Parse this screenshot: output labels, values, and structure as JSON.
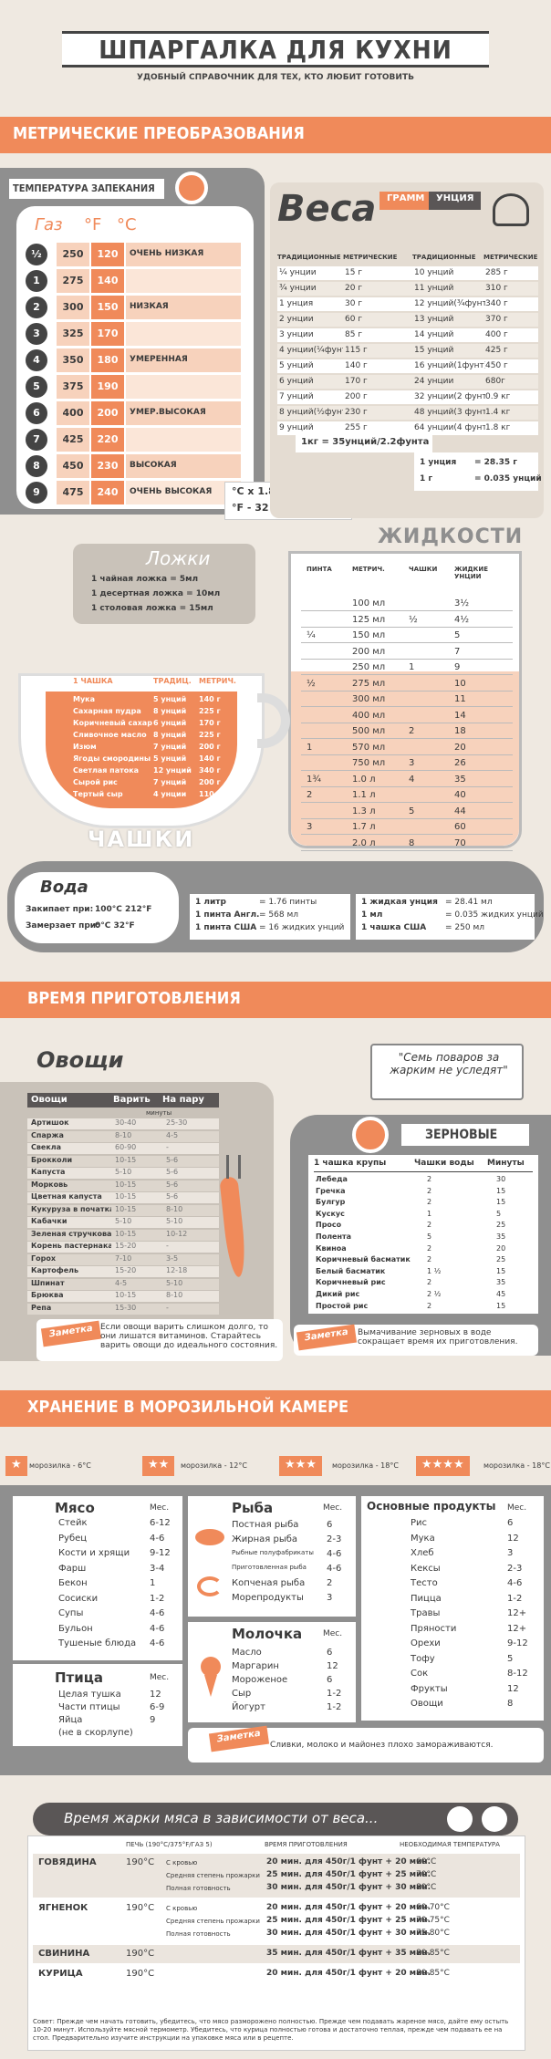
{
  "header": {
    "title": "ШПАРГАЛКА ДЛЯ КУХНИ",
    "subtitle": "УДОБНЫЙ СПРАВОЧНИК ДЛЯ ТЕХ, КТО ЛЮБИТ ГОТОВИТЬ"
  },
  "metric": {
    "title": "МЕТРИЧЕСКИЕ ПРЕОБРАЗОВАНИЯ"
  },
  "oven": {
    "title": "ТЕМПЕРАТУРА ЗАПЕКАНИЯ",
    "col_gas": "Газ",
    "col_f": "°F",
    "col_c": "°C",
    "rows": [
      {
        "gas": "½",
        "f": "250",
        "c": "120",
        "label": "ОЧЕНЬ НИЗКАЯ"
      },
      {
        "gas": "1",
        "f": "275",
        "c": "140",
        "label": ""
      },
      {
        "gas": "2",
        "f": "300",
        "c": "150",
        "label": "НИЗКАЯ"
      },
      {
        "gas": "3",
        "f": "325",
        "c": "170",
        "label": ""
      },
      {
        "gas": "4",
        "f": "350",
        "c": "180",
        "label": "УМЕРЕННАЯ"
      },
      {
        "gas": "5",
        "f": "375",
        "c": "190",
        "label": ""
      },
      {
        "gas": "6",
        "f": "400",
        "c": "200",
        "label": "УМЕР.ВЫСОКАЯ"
      },
      {
        "gas": "7",
        "f": "425",
        "c": "220",
        "label": ""
      },
      {
        "gas": "8",
        "f": "450",
        "c": "230",
        "label": "ВЫСОКАЯ"
      },
      {
        "gas": "9",
        "f": "475",
        "c": "240",
        "label": "ОЧЕНЬ ВЫСОКАЯ"
      }
    ],
    "formula1": "°C x 1.8 + 32 = °F",
    "formula2": "°F - 32 ÷ 1.8 = °C"
  },
  "weights": {
    "title": "Веса",
    "tag1": "ГРАММ",
    "tag2": "УНЦИЯ",
    "h1": "ТРАДИЦИОННЫЕ",
    "h2": "МЕТРИЧЕСКИЕ",
    "h3": "ТРАДИЦИОННЫЕ",
    "h4": "МЕТРИЧЕСКИЕ",
    "rows": [
      [
        "¼ унции",
        "15 г",
        "10 унций",
        "285 г"
      ],
      [
        "¾ унции",
        "20 г",
        "11 унций",
        "310 г"
      ],
      [
        "1 унция",
        "30 г",
        "12 унций(¾фунта)",
        "340 г"
      ],
      [
        "2 унции",
        "60 г",
        "13 унций",
        "370 г"
      ],
      [
        "3 унции",
        "85 г",
        "14 унций",
        "400 г"
      ],
      [
        "4 унции(¼фунт)",
        "115 г",
        "15 унций",
        "425 г"
      ],
      [
        "5 унций",
        "140 г",
        "16 унций(1фунт)",
        "450 г"
      ],
      [
        "6 унций",
        "170 г",
        "24 унции",
        "680г"
      ],
      [
        "7 унций",
        "200 г",
        "32 унции(2 фунта)",
        "0.9 кг"
      ],
      [
        "8 унций(½фунт)",
        "230 г",
        "48 унций(3 фунта)",
        "1.4 кг"
      ],
      [
        "9 унций",
        "255 г",
        "64 унции(4 фунта)",
        "1.8 кг"
      ]
    ],
    "footer": "1кг = 35унций/2.2фунта",
    "conv1_l": "1 унция",
    "conv1_r": "= 28.35 г",
    "conv2_l": "1 г",
    "conv2_r": "= 0.035 унций"
  },
  "spoons": {
    "title": "Ложки",
    "rows": [
      "1 чайная ложка = 5мл",
      "1 десертная ложка = 10мл",
      "1 столовая ложка = 15мл"
    ]
  },
  "liquids": {
    "title": "ЖИДКОСТИ",
    "h1": "ПИНТА",
    "h2": "МЕТРИЧ.",
    "h3": "ЧАШКИ",
    "h4": "ЖИДКИЕ УНЦИИ",
    "rows": [
      [
        "",
        "100 мл",
        "",
        "3½"
      ],
      [
        "",
        "125 мл",
        "½",
        "4½"
      ],
      [
        "¼",
        "150 мл",
        "",
        "5"
      ],
      [
        "",
        "200 мл",
        "",
        "7"
      ],
      [
        "",
        "250 мл",
        "1",
        "9"
      ],
      [
        "½",
        "275 мл",
        "",
        "10"
      ],
      [
        "",
        "300 мл",
        "",
        "11"
      ],
      [
        "",
        "400 мл",
        "",
        "14"
      ],
      [
        "",
        "500 мл",
        "2",
        "18"
      ],
      [
        "1",
        "570 мл",
        "",
        "20"
      ],
      [
        "",
        "750 мл",
        "3",
        "26"
      ],
      [
        "1¾",
        "1.0 л",
        "4",
        "35"
      ],
      [
        "2",
        "1.1 л",
        "",
        "40"
      ],
      [
        "",
        "1.3 л",
        "5",
        "44"
      ],
      [
        "3",
        "1.7 л",
        "",
        "60"
      ],
      [
        "",
        "2.0 л",
        "8",
        "70"
      ]
    ]
  },
  "cups": {
    "title": "ЧАШКИ",
    "h1": "1 ЧАШКА",
    "h2": "ТРАДИЦ.",
    "h3": "МЕТРИЧ.",
    "rows": [
      [
        "Мука",
        "5 унций",
        "140 г"
      ],
      [
        "Сахарная пудра",
        "8 унций",
        "225 г"
      ],
      [
        "Коричневый сахар",
        "6 унций",
        "170 г"
      ],
      [
        "Сливочное масло",
        "8 унций",
        "225 г"
      ],
      [
        "Изюм",
        "7 унций",
        "200 г"
      ],
      [
        "Ягоды смородины",
        "5 унций",
        "140 г"
      ],
      [
        "Светлая патока",
        "12 унций",
        "340 г"
      ],
      [
        "Сырой рис",
        "7 унций",
        "200 г"
      ],
      [
        "Тертый сыр",
        "4 унции",
        "110 г"
      ]
    ]
  },
  "water": {
    "title": "Вода",
    "boil_l": "Закипает при:",
    "boil_v": "100°C  212°F",
    "freeze_l": "Замерзает при:",
    "freeze_v": "0°C  32°F",
    "c1": [
      [
        "1 литр",
        "= 1.76 пинты"
      ],
      [
        "1 пинта Англ.",
        "= 568 мл"
      ],
      [
        "1 пинта США",
        "= 16 жидких унций"
      ]
    ],
    "c2": [
      [
        "1 жидкая унция",
        "= 28.41 мл"
      ],
      [
        "1 мл",
        "= 0.035 жидких унций"
      ],
      [
        "1 чашка США",
        "= 250 мл"
      ]
    ]
  },
  "time": {
    "title": "ВРЕМЯ ПРИГОТОВЛЕНИЯ"
  },
  "veg": {
    "title": "Овощи",
    "h1": "Овощи",
    "h2": "Варить",
    "h3": "На пару",
    "sub": "минуты",
    "rows": [
      [
        "Артишок",
        "30-40",
        "25-30"
      ],
      [
        "Спаржа",
        "8-10",
        "4-5"
      ],
      [
        "Свекла",
        "60-90",
        "-"
      ],
      [
        "Брокколи",
        "10-15",
        "5-6"
      ],
      [
        "Капуста",
        "5-10",
        "5-6"
      ],
      [
        "Морковь",
        "10-15",
        "5-6"
      ],
      [
        "Цветная капуста",
        "10-15",
        "5-6"
      ],
      [
        "Кукуруза в початках",
        "10-15",
        "8-10"
      ],
      [
        "Кабачки",
        "5-10",
        "5-10"
      ],
      [
        "Зеленая стручковая фасоль",
        "10-15",
        "10-12"
      ],
      [
        "Корень пастернака",
        "15-20",
        "-"
      ],
      [
        "Горох",
        "7-10",
        "3-5"
      ],
      [
        "Картофель",
        "15-20",
        "12-18"
      ],
      [
        "Шпинат",
        "4-5",
        "5-10"
      ],
      [
        "Брюква",
        "10-15",
        "8-10"
      ],
      [
        "Репа",
        "15-30",
        "-"
      ]
    ],
    "note_tag": "Заметка",
    "note": "Если овощи варить слишком долго, то они лишатся витаминов. Старайтесь варить овощи до идеального состояния."
  },
  "quote": "\"Семь поваров за жарким не уследят\"",
  "grains": {
    "title": "ЗЕРНОВЫЕ",
    "h1": "1 чашка крупы",
    "h2": "Чашки воды",
    "h3": "Минуты",
    "rows": [
      [
        "Лебеда",
        "2",
        "30"
      ],
      [
        "Гречка",
        "2",
        "15"
      ],
      [
        "Булгур",
        "2",
        "15"
      ],
      [
        "Кускус",
        "1",
        "5"
      ],
      [
        "Просо",
        "2",
        "25"
      ],
      [
        "Полента",
        "5",
        "35"
      ],
      [
        "Квиноа",
        "2",
        "20"
      ],
      [
        "Коричневый басматик",
        "2",
        "25"
      ],
      [
        "Белый басматик",
        "1 ½",
        "15"
      ],
      [
        "Коричневый рис",
        "2",
        "35"
      ],
      [
        "Дикий рис",
        "2 ½",
        "45"
      ],
      [
        "Простой рис",
        "2",
        "15"
      ]
    ],
    "note_tag": "Заметка",
    "note": "Вымачивание зерновых в воде сокращает время их приготовления."
  },
  "freezer": {
    "title": "ХРАНЕНИЕ В МОРОЗИЛЬНОЙ КАМЕРЕ",
    "levels": [
      {
        "stars": "★",
        "label": "морозилка - 6°C"
      },
      {
        "stars": "★★",
        "label": "морозилка - 12°C"
      },
      {
        "stars": "★★★",
        "label": "морозилка - 18°C"
      },
      {
        "stars": "★★★★",
        "label": "морозилка - 18°C"
      }
    ],
    "mes": "Мес.",
    "meat": {
      "title": "Мясо",
      "rows": [
        [
          "Стейк",
          "6-12"
        ],
        [
          "Рубец",
          "4-6"
        ],
        [
          "Кости и хрящи",
          "9-12"
        ],
        [
          "Фарш",
          "3-4"
        ],
        [
          "Бекон",
          "1"
        ],
        [
          "Сосиски",
          "1-2"
        ],
        [
          "Супы",
          "4-6"
        ],
        [
          "Бульон",
          "4-6"
        ],
        [
          "Тушеные блюда",
          "4-6"
        ]
      ]
    },
    "bird": {
      "title": "Птица",
      "rows": [
        [
          "Целая тушка",
          "12"
        ],
        [
          "Части птицы",
          "6-9"
        ],
        [
          "Яйца",
          "9"
        ],
        [
          "(не в скорлупе)",
          ""
        ]
      ]
    },
    "fish": {
      "title": "Рыба",
      "rows": [
        [
          "Постная рыба",
          "6"
        ],
        [
          "Жирная рыба",
          "2-3"
        ],
        [
          "Рыбные полуфабрикаты",
          "4-6"
        ],
        [
          "Приготовленная рыба",
          "4-6"
        ],
        [
          "Копченая рыба",
          "2"
        ],
        [
          "Морепродукты",
          "3"
        ]
      ]
    },
    "milk": {
      "title": "Молочка",
      "rows": [
        [
          "Масло",
          "6"
        ],
        [
          "Маргарин",
          "12"
        ],
        [
          "Мороженое",
          "6"
        ],
        [
          "Сыр",
          "1-2"
        ],
        [
          "Йогурт",
          "1-2"
        ]
      ]
    },
    "staples": {
      "title": "Основные продукты",
      "rows": [
        [
          "Рис",
          "6"
        ],
        [
          "Мука",
          "12"
        ],
        [
          "Хлеб",
          "3"
        ],
        [
          "Кексы",
          "2-3"
        ],
        [
          "Тесто",
          "4-6"
        ],
        [
          "Пицца",
          "1-2"
        ],
        [
          "Травы",
          "12+"
        ],
        [
          "Пряности",
          "12+"
        ],
        [
          "Орехи",
          "9-12"
        ],
        [
          "Тофу",
          "5"
        ],
        [
          "Сок",
          "8-12"
        ],
        [
          "Фрукты",
          "12"
        ],
        [
          "Овощи",
          "8"
        ]
      ]
    },
    "note_tag": "Заметка",
    "note": "Сливки, молоко и майонез плохо замораживаются."
  },
  "roast": {
    "title": "Время жарки мяса в зависимости от веса...",
    "h1": "ПЕЧЬ (190°C/375°F/ГАЗ 5)",
    "h2": "ВРЕМЯ ПРИГОТОВЛЕНИЯ",
    "h3": "НЕОБХОДИМАЯ ТЕМПЕРАТУРА",
    "rows": [
      {
        "meat": "ГОВЯДИНА",
        "temp": "190°C",
        "lines": [
          [
            "С кровью",
            "20 мин. для 450г/1 фунт + 20 мин.",
            "60°C"
          ],
          [
            "Средняя степень прожарки",
            "25 мин. для 450г/1 фунт + 25 мин.",
            "70°C"
          ],
          [
            "Полная готовность",
            "30 мин. для 450г/1 фунт + 30 мин.",
            "80°C"
          ]
        ]
      },
      {
        "meat": "ЯГНЕНОК",
        "temp": "190°C",
        "lines": [
          [
            "С кровью",
            "20 мин. для 450г/1 фунт + 20 мин.",
            "60-70°C"
          ],
          [
            "Средняя степень прожарки",
            "25 мин. для 450г/1 фунт + 25 мин.",
            "70-75°C"
          ],
          [
            "Полная готовность",
            "30 мин. для 450г/1 фунт + 30 мин.",
            "75-80°C"
          ]
        ]
      },
      {
        "meat": "СВИНИНА",
        "temp": "190°C",
        "lines": [
          [
            "",
            "35 мин. для 450г/1 фунт + 35 мин.",
            "80-85°C"
          ]
        ]
      },
      {
        "meat": "КУРИЦА",
        "temp": "190°C",
        "lines": [
          [
            "",
            "20 мин. для 450г/1 фунт + 20 мин.",
            "80-85°C"
          ]
        ]
      }
    ],
    "foot": "Совет: Прежде чем начать готовить, убедитесь, что мясо разморожено полностью. Прежде чем подавать жареное мясо, дайте ему остыть 10-20 минут. Используйте мясной термометр. Убедитесь, что курица полностью готова и достаточно теплая, прежде чем подавать ее на стол. Предварительно изучите инструкции на упаковке мяса или в рецепте."
  },
  "colors": {
    "orange": "#f08a5a",
    "gray": "#8f8f8f",
    "dark": "#5a5656",
    "pale": "#f7d2bc"
  }
}
